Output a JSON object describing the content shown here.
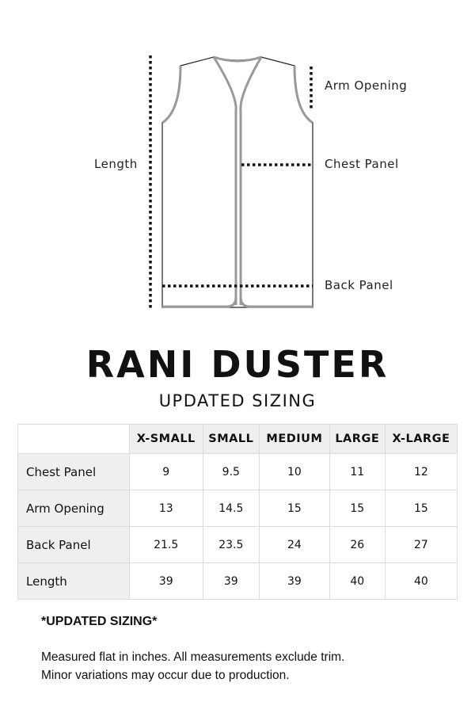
{
  "diagram": {
    "labels": {
      "arm_opening": "Arm Opening",
      "chest_panel": "Chest Panel",
      "length": "Length",
      "back_panel": "Back Panel"
    }
  },
  "title": "RANI DUSTER",
  "subtitle": "UPDATED SIZING",
  "table": {
    "columns": [
      "X-SMALL",
      "SMALL",
      "MEDIUM",
      "LARGE",
      "X-LARGE"
    ],
    "rows": [
      {
        "label": "Chest Panel",
        "values": [
          "9",
          "9.5",
          "10",
          "11",
          "12"
        ]
      },
      {
        "label": "Arm Opening",
        "values": [
          "13",
          "14.5",
          "15",
          "15",
          "15"
        ]
      },
      {
        "label": "Back Panel",
        "values": [
          "21.5",
          "23.5",
          "24",
          "26",
          "27"
        ]
      },
      {
        "label": "Length",
        "values": [
          "39",
          "39",
          "39",
          "40",
          "40"
        ]
      }
    ]
  },
  "notes": {
    "title": "*UPDATED SIZING*",
    "line1": "Measured flat in inches. All measurements exclude trim.",
    "line2": "Minor variations may occur due to production."
  }
}
